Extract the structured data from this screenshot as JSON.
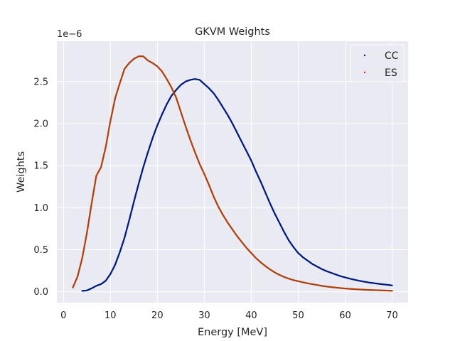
{
  "chart_data": {
    "type": "scatter",
    "title": "GKVM Weights",
    "xlabel": "Energy [MeV]",
    "ylabel": "Weights",
    "y_offset_label": "1e−6",
    "y_unit_scale": 1e-06,
    "xlim": [
      -1.4,
      73.4
    ],
    "ylim": [
      -1.3e-07,
      2.98e-06
    ],
    "x_ticks": [
      0,
      10,
      20,
      30,
      40,
      50,
      60,
      70
    ],
    "x_tick_labels": [
      "0",
      "10",
      "20",
      "30",
      "40",
      "50",
      "60",
      "70"
    ],
    "y_ticks": [
      0,
      5e-07,
      1e-06,
      1.5e-06,
      2e-06,
      2.5e-06
    ],
    "y_tick_labels": [
      "0.0",
      "0.5",
      "1.0",
      "1.5",
      "2.0",
      "2.5"
    ],
    "grid": true,
    "legend_position": "upper right",
    "colors": {
      "background": "#eaeaf2",
      "grid": "#ffffff",
      "text": "#262626"
    },
    "series": [
      {
        "name": "CC",
        "color": "#001c7f",
        "points": [
          [
            4,
            1e-08
          ],
          [
            5,
            1.5e-08
          ],
          [
            6,
            4e-08
          ],
          [
            7,
            7e-08
          ],
          [
            8,
            9e-08
          ],
          [
            9,
            1.3e-07
          ],
          [
            10,
            2.1e-07
          ],
          [
            11,
            3.2e-07
          ],
          [
            12,
            4.7e-07
          ],
          [
            13,
            6.4e-07
          ],
          [
            14,
            8.5e-07
          ],
          [
            15,
            1.07e-06
          ],
          [
            16,
            1.28e-06
          ],
          [
            17,
            1.48e-06
          ],
          [
            18,
            1.66e-06
          ],
          [
            19,
            1.83e-06
          ],
          [
            20,
            1.98e-06
          ],
          [
            21,
            2.11e-06
          ],
          [
            22,
            2.23e-06
          ],
          [
            23,
            2.33e-06
          ],
          [
            24,
            2.4e-06
          ],
          [
            25,
            2.46e-06
          ],
          [
            26,
            2.5e-06
          ],
          [
            27,
            2.52e-06
          ],
          [
            28,
            2.53e-06
          ],
          [
            29,
            2.52e-06
          ],
          [
            30,
            2.47e-06
          ],
          [
            31,
            2.42e-06
          ],
          [
            32,
            2.36e-06
          ],
          [
            33,
            2.28e-06
          ],
          [
            34,
            2.19e-06
          ],
          [
            35,
            2.1e-06
          ],
          [
            36,
            2e-06
          ],
          [
            37,
            1.89e-06
          ],
          [
            38,
            1.78e-06
          ],
          [
            39,
            1.67e-06
          ],
          [
            40,
            1.56e-06
          ],
          [
            41,
            1.43e-06
          ],
          [
            42,
            1.31e-06
          ],
          [
            43,
            1.18e-06
          ],
          [
            44,
            1.05e-06
          ],
          [
            45,
            9.3e-07
          ],
          [
            46,
            8.2e-07
          ],
          [
            47,
            7.1e-07
          ],
          [
            48,
            6.1e-07
          ],
          [
            49,
            5.3e-07
          ],
          [
            50,
            4.6e-07
          ],
          [
            51,
            4.1e-07
          ],
          [
            52,
            3.7e-07
          ],
          [
            53,
            3.3e-07
          ],
          [
            54,
            3e-07
          ],
          [
            55,
            2.7e-07
          ],
          [
            56,
            2.45e-07
          ],
          [
            57,
            2.25e-07
          ],
          [
            58,
            2.05e-07
          ],
          [
            59,
            1.85e-07
          ],
          [
            60,
            1.7e-07
          ],
          [
            61,
            1.55e-07
          ],
          [
            62,
            1.42e-07
          ],
          [
            63,
            1.3e-07
          ],
          [
            64,
            1.2e-07
          ],
          [
            65,
            1.1e-07
          ],
          [
            66,
            1.02e-07
          ],
          [
            67,
            9.5e-08
          ],
          [
            68,
            8.8e-08
          ],
          [
            69,
            8.2e-08
          ],
          [
            70,
            7.5e-08
          ]
        ]
      },
      {
        "name": "ES",
        "color": "#b1400d",
        "points": [
          [
            2,
            5e-08
          ],
          [
            3,
            1.8e-07
          ],
          [
            4,
            4e-07
          ],
          [
            5,
            7e-07
          ],
          [
            6,
            1.05e-06
          ],
          [
            7,
            1.38e-06
          ],
          [
            8,
            1.48e-06
          ],
          [
            9,
            1.72e-06
          ],
          [
            10,
            2.03e-06
          ],
          [
            11,
            2.3e-06
          ],
          [
            12,
            2.48e-06
          ],
          [
            13,
            2.65e-06
          ],
          [
            14,
            2.72e-06
          ],
          [
            15,
            2.77e-06
          ],
          [
            16,
            2.8e-06
          ],
          [
            17,
            2.8e-06
          ],
          [
            18,
            2.75e-06
          ],
          [
            19,
            2.72e-06
          ],
          [
            20,
            2.68e-06
          ],
          [
            21,
            2.62e-06
          ],
          [
            22,
            2.53e-06
          ],
          [
            23,
            2.43e-06
          ],
          [
            24,
            2.31e-06
          ],
          [
            25,
            2.14e-06
          ],
          [
            26,
            1.97e-06
          ],
          [
            27,
            1.81e-06
          ],
          [
            28,
            1.66e-06
          ],
          [
            29,
            1.52e-06
          ],
          [
            30,
            1.4e-06
          ],
          [
            31,
            1.27e-06
          ],
          [
            32,
            1.13e-06
          ],
          [
            33,
            1.01e-06
          ],
          [
            34,
            9.1e-07
          ],
          [
            35,
            8.2e-07
          ],
          [
            36,
            7.4e-07
          ],
          [
            37,
            6.6e-07
          ],
          [
            38,
            5.9e-07
          ],
          [
            39,
            5.2e-07
          ],
          [
            40,
            4.6e-07
          ],
          [
            41,
            4e-07
          ],
          [
            42,
            3.5e-07
          ],
          [
            43,
            3.05e-07
          ],
          [
            44,
            2.65e-07
          ],
          [
            45,
            2.3e-07
          ],
          [
            46,
            2e-07
          ],
          [
            47,
            1.75e-07
          ],
          [
            48,
            1.55e-07
          ],
          [
            49,
            1.38e-07
          ],
          [
            50,
            1.25e-07
          ],
          [
            51,
            1.12e-07
          ],
          [
            52,
            1e-07
          ],
          [
            53,
            9e-08
          ],
          [
            54,
            8e-08
          ],
          [
            55,
            7e-08
          ],
          [
            56,
            6.2e-08
          ],
          [
            57,
            5.5e-08
          ],
          [
            58,
            4.9e-08
          ],
          [
            59,
            4.3e-08
          ],
          [
            60,
            3.8e-08
          ],
          [
            61,
            3.4e-08
          ],
          [
            62,
            3e-08
          ],
          [
            63,
            2.7e-08
          ],
          [
            64,
            2.4e-08
          ],
          [
            65,
            2.1e-08
          ],
          [
            66,
            1.9e-08
          ],
          [
            67,
            1.7e-08
          ],
          [
            68,
            1.5e-08
          ],
          [
            69,
            1.3e-08
          ],
          [
            70,
            1.1e-08
          ]
        ]
      }
    ]
  }
}
